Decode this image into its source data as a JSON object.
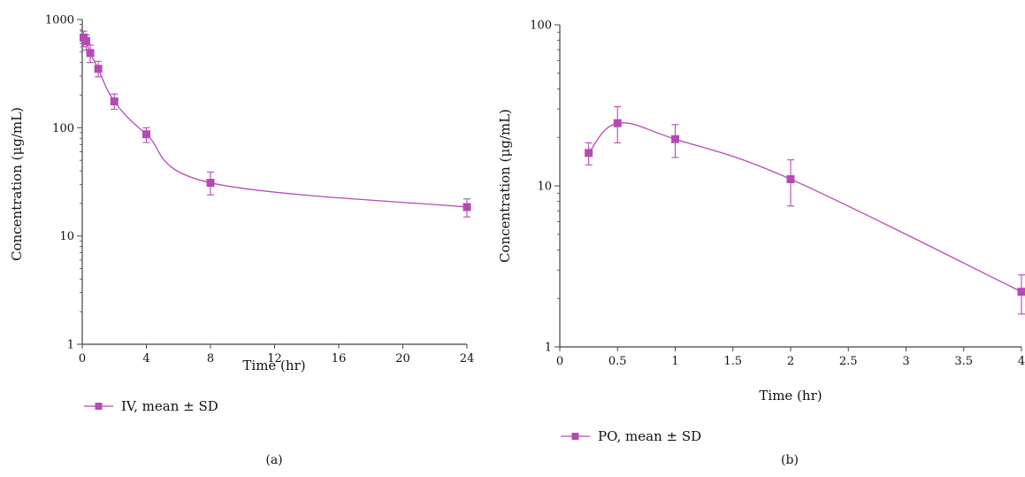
{
  "chart_data": [
    {
      "panel_label": "(a)",
      "type": "line",
      "xlabel": "Time (hr)",
      "ylabel": "Concentration (μg/mL)",
      "yscale": "log",
      "xlim": [
        0,
        24
      ],
      "ylim": [
        1,
        1000
      ],
      "x_ticks": [
        "0",
        "4",
        "8",
        "12",
        "16",
        "20",
        "24"
      ],
      "y_ticks": [
        "1",
        "10",
        "100",
        "1000"
      ],
      "grid": false,
      "legend_position": "bottom-left",
      "color": "#b44bb4",
      "series": [
        {
          "name": "IV, mean ± SD",
          "x": [
            0.083,
            0.25,
            0.5,
            1,
            2,
            4,
            8,
            24
          ],
          "y": [
            680,
            630,
            490,
            350,
            175,
            87,
            31,
            18.5
          ],
          "error_low": [
            560,
            520,
            400,
            295,
            148,
            73,
            24,
            15
          ],
          "error_high": [
            780,
            720,
            580,
            410,
            205,
            100,
            39,
            22
          ]
        }
      ]
    },
    {
      "panel_label": "(b)",
      "type": "line",
      "xlabel": "Time (hr)",
      "ylabel": "Concentration (μg/mL)",
      "yscale": "log",
      "xlim": [
        0,
        4
      ],
      "ylim": [
        1,
        100
      ],
      "x_ticks": [
        "0",
        "0.5",
        "1",
        "1.5",
        "2",
        "2.5",
        "3",
        "3.5",
        "4"
      ],
      "y_ticks": [
        "1",
        "10",
        "100"
      ],
      "grid": false,
      "legend_position": "bottom-left",
      "color": "#b44bb4",
      "series": [
        {
          "name": "PO, mean ± SD",
          "x": [
            0.25,
            0.5,
            1,
            2,
            4
          ],
          "y": [
            16,
            24.5,
            19.5,
            11,
            2.2
          ],
          "error_low": [
            13.5,
            18.5,
            15,
            7.5,
            1.6
          ],
          "error_high": [
            18.5,
            31,
            24,
            14.5,
            2.8
          ]
        }
      ]
    }
  ]
}
